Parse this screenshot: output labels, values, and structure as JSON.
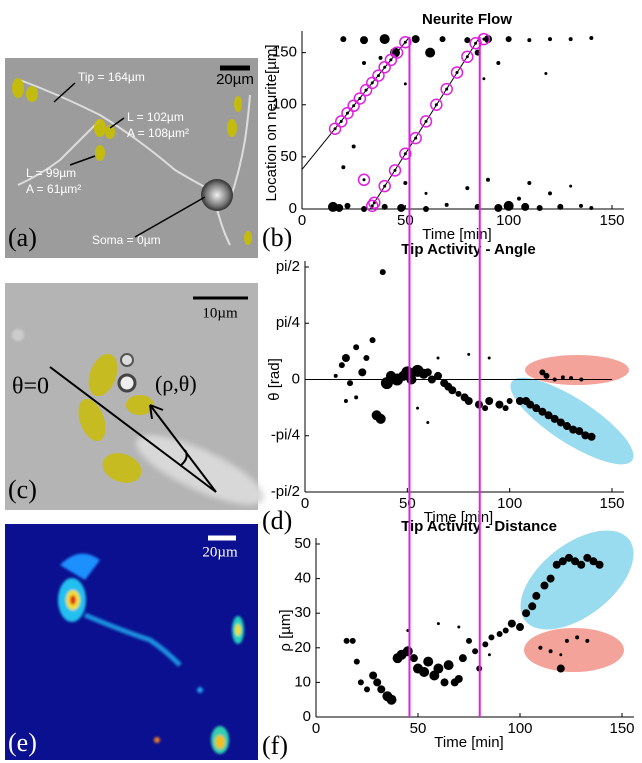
{
  "images": [
    {
      "panel_label": "(a)",
      "scale": "20µm",
      "labels": [
        "Tip = 164µm",
        "L = 102µm",
        "A = 108µm²",
        "L = 99µm",
        "A = 61µm²",
        "Soma = 0µm"
      ]
    },
    {
      "panel_label": "(c)",
      "scale": "10µm",
      "labels": [
        "θ=0",
        "(ρ,θ)"
      ]
    },
    {
      "panel_label": "(e)",
      "scale": "20µm"
    }
  ],
  "chart_data": [
    {
      "type": "scatter",
      "title": "Neurite Flow",
      "panel_label": "(b)",
      "x_label": "Time [min]",
      "y_label": "Location on neurite[µm]",
      "xlim": [
        0,
        150
      ],
      "xticks": [
        0,
        50,
        100,
        150
      ],
      "ylim": [
        0,
        165
      ],
      "yticks": [
        0,
        50,
        100,
        150
      ],
      "vlines": [
        52,
        86
      ],
      "vline_color": "#e020e0",
      "fit_lines": [
        {
          "x": [
            0,
            52
          ],
          "values": [
            38,
            165
          ]
        },
        {
          "x": [
            33,
            86
          ],
          "values": [
            0,
            165
          ]
        }
      ],
      "series": [
        {
          "color": "#000000",
          "x": [
            15,
            18,
            22,
            30,
            40,
            48,
            60,
            70,
            85,
            95,
            100,
            108,
            115,
            125,
            135,
            140,
            20,
            30,
            40,
            45,
            55,
            62,
            68,
            80,
            85,
            90,
            100,
            110,
            120,
            130,
            140,
            30,
            38,
            50,
            88,
            95,
            118,
            20,
            25,
            50,
            80,
            90,
            110,
            130,
            60,
            105,
            120
          ],
          "values": [
            2,
            1,
            3,
            0,
            2,
            1,
            0,
            4,
            2,
            1,
            3,
            2,
            1,
            2,
            3,
            1,
            163,
            162,
            163,
            150,
            163,
            150,
            163,
            162,
            150,
            163,
            163,
            162,
            163,
            163,
            164,
            140,
            145,
            120,
            125,
            140,
            130,
            40,
            60,
            25,
            20,
            28,
            25,
            22,
            15,
            10,
            15
          ],
          "sizes": [
            5,
            4,
            3,
            3,
            3,
            4,
            3,
            2,
            3,
            4,
            5,
            4,
            3,
            3,
            2,
            2,
            3,
            4,
            5,
            5,
            4,
            5,
            3,
            3,
            3,
            4,
            3,
            2,
            2,
            2,
            2,
            2,
            2,
            1.5,
            1.5,
            2,
            1.5,
            2,
            2,
            2,
            2,
            2,
            2,
            1.5,
            1.5,
            2,
            2
          ]
        },
        {
          "color": "#e020e0",
          "hollow": true,
          "x": [
            16,
            19,
            22,
            25,
            28,
            31,
            34,
            37,
            40,
            43,
            46,
            50,
            35,
            40,
            45,
            50,
            55,
            60,
            65,
            70,
            75,
            80,
            84,
            88,
            30,
            34
          ],
          "values": [
            77,
            84,
            92,
            99,
            106,
            114,
            121,
            128,
            136,
            143,
            150,
            160,
            6,
            22,
            37,
            53,
            68,
            84,
            100,
            115,
            131,
            146,
            159,
            163,
            28,
            3
          ]
        }
      ]
    },
    {
      "type": "scatter",
      "title": "Tip Activity - Angle",
      "panel_label": "(d)",
      "x_label": "Time [min]",
      "y_label": "θ [rad]",
      "xlim": [
        0,
        150
      ],
      "xticks": [
        0,
        50,
        100,
        150
      ],
      "ylim": [
        -1.5708,
        1.5708
      ],
      "yticks": [
        {
          "value": -1.5708,
          "label": "-pi/2"
        },
        {
          "value": -0.7854,
          "label": "-pi/4"
        },
        0,
        {
          "value": 0.7854,
          "label": "pi/4"
        },
        {
          "value": 1.5708,
          "label": "pi/2"
        }
      ],
      "hline": 0,
      "series": [
        {
          "color": "#000000",
          "x": [
            15,
            18,
            20,
            22,
            25,
            28,
            30,
            33,
            35,
            37,
            38,
            40,
            42,
            45,
            48,
            50,
            52,
            55,
            58,
            60,
            62,
            65,
            68,
            70,
            72,
            75,
            78,
            80,
            85,
            88,
            90,
            95,
            98,
            100,
            105,
            108,
            110,
            113,
            116,
            119,
            122,
            125,
            128,
            131,
            134,
            137,
            140,
            116,
            118,
            122,
            126,
            130,
            135,
            65,
            80,
            90,
            55,
            60,
            20,
            25
          ],
          "values": [
            0.05,
            0.2,
            0.3,
            -0.05,
            0.45,
            0.1,
            0.3,
            0.55,
            -0.5,
            -0.55,
            1.5,
            -0.05,
            0.05,
            0,
            0.05,
            0.1,
            0,
            0.12,
            0.08,
            0.1,
            0,
            0.05,
            -0.05,
            -0.1,
            -0.15,
            -0.2,
            -0.25,
            -0.3,
            -0.35,
            -0.4,
            -0.3,
            -0.35,
            -0.4,
            -0.3,
            -0.3,
            -0.3,
            -0.35,
            -0.4,
            -0.45,
            -0.5,
            -0.55,
            -0.6,
            -0.65,
            -0.7,
            -0.72,
            -0.78,
            -0.8,
            0.1,
            0.05,
            0,
            0.03,
            0.02,
            0,
            0.3,
            0.35,
            0.3,
            -0.4,
            -0.6,
            -0.3,
            -0.25
          ],
          "sizes": [
            2,
            3,
            4,
            3,
            3,
            4,
            3,
            3,
            5,
            5,
            3,
            6,
            5,
            6,
            5,
            6,
            5,
            6,
            5,
            4,
            4,
            4,
            4,
            4,
            4,
            3,
            4,
            4,
            4,
            3,
            4,
            4,
            3,
            3,
            4,
            4,
            4,
            4,
            4,
            4,
            4,
            4,
            4,
            4,
            4,
            4,
            4,
            3,
            3,
            2,
            2,
            2,
            2,
            1.5,
            1.5,
            1.5,
            1.5,
            1.5,
            2,
            2
          ]
        }
      ]
    },
    {
      "type": "scatter",
      "title": "Tip Activity - Distance",
      "panel_label": "(f)",
      "x_label": "Time [min]",
      "y_label": "ρ [µm]",
      "xlim": [
        0,
        150
      ],
      "xticks": [
        0,
        50,
        100,
        150
      ],
      "ylim": [
        0,
        50
      ],
      "yticks": [
        0,
        10,
        20,
        30,
        40,
        50
      ],
      "series": [
        {
          "color": "#000000",
          "x": [
            15,
            18,
            20,
            22,
            25,
            28,
            30,
            32,
            35,
            37,
            40,
            42,
            45,
            48,
            50,
            53,
            55,
            58,
            60,
            63,
            65,
            68,
            70,
            72,
            75,
            78,
            80,
            83,
            86,
            90,
            93,
            96,
            100,
            103,
            106,
            108,
            112,
            115,
            118,
            121,
            124,
            127,
            130,
            133,
            136,
            139,
            110,
            115,
            120,
            123,
            128,
            133,
            60,
            70,
            85,
            45,
            120
          ],
          "values": [
            22,
            22,
            16,
            10,
            8,
            12,
            10,
            8,
            6,
            5,
            17,
            18,
            19,
            17,
            14,
            13,
            16,
            12,
            14,
            10,
            15,
            10,
            11,
            17,
            22,
            19,
            14,
            21,
            23,
            24,
            25,
            27,
            26,
            30,
            32,
            35,
            38,
            40,
            44,
            45,
            46,
            45,
            44,
            46,
            45,
            44,
            20,
            19,
            14,
            22,
            23,
            22,
            27,
            26,
            18,
            25,
            18
          ],
          "sizes": [
            3,
            3,
            3,
            3,
            3,
            4,
            4,
            4,
            5,
            5,
            5,
            5,
            5,
            4,
            5,
            5,
            5,
            5,
            5,
            4,
            5,
            4,
            4,
            4,
            3,
            3,
            3,
            3,
            3,
            3,
            3,
            4,
            4,
            4,
            4,
            4,
            4,
            4,
            4,
            4,
            4,
            4,
            4,
            4,
            4,
            4,
            2,
            2,
            4,
            2,
            2,
            2,
            1.5,
            1.5,
            1.5,
            1.5,
            1.5
          ]
        }
      ]
    }
  ]
}
